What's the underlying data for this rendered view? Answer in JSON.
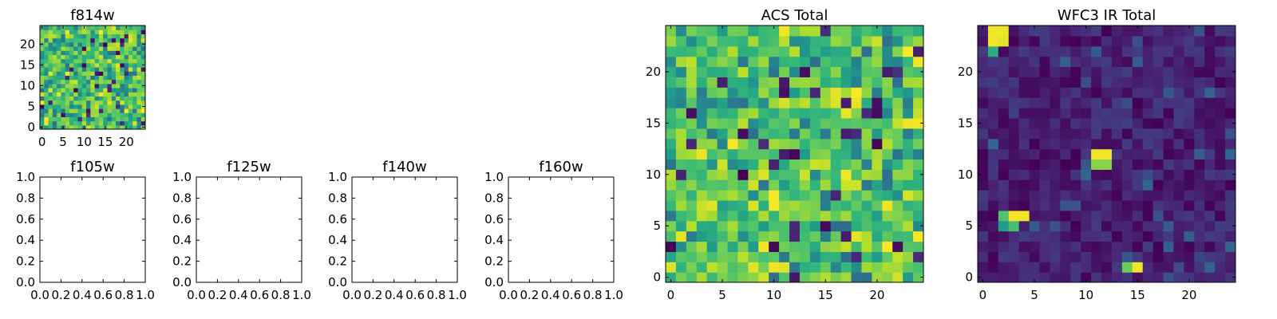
{
  "chart_data": [
    {
      "type": "heatmap",
      "title": "f814w",
      "grid_size": 25,
      "xlim": [
        -0.5,
        24.5
      ],
      "ylim": [
        -0.5,
        24.5
      ],
      "xticks": [
        "0",
        "5",
        "10",
        "15",
        "20"
      ],
      "yticks": [
        "0",
        "5",
        "10",
        "15",
        "20"
      ],
      "colormap": "viridis",
      "seed": 814,
      "pattern": "noise"
    },
    {
      "type": "empty",
      "title": "f105w",
      "xlim": [
        0,
        1
      ],
      "ylim": [
        0,
        1
      ],
      "xticks": [
        "0.0",
        "0.2",
        "0.4",
        "0.6",
        "0.8",
        "1.0"
      ],
      "yticks": [
        "0.0",
        "0.2",
        "0.4",
        "0.6",
        "0.8",
        "1.0"
      ]
    },
    {
      "type": "empty",
      "title": "f125w",
      "xlim": [
        0,
        1
      ],
      "ylim": [
        0,
        1
      ],
      "xticks": [
        "0.0",
        "0.2",
        "0.4",
        "0.6",
        "0.8",
        "1.0"
      ],
      "yticks": [
        "0.0",
        "0.2",
        "0.4",
        "0.6",
        "0.8",
        "1.0"
      ]
    },
    {
      "type": "empty",
      "title": "f140w",
      "xlim": [
        0,
        1
      ],
      "ylim": [
        0,
        1
      ],
      "xticks": [
        "0.0",
        "0.2",
        "0.4",
        "0.6",
        "0.8",
        "1.0"
      ],
      "yticks": [
        "0.0",
        "0.2",
        "0.4",
        "0.6",
        "0.8",
        "1.0"
      ]
    },
    {
      "type": "empty",
      "title": "f160w",
      "xlim": [
        0,
        1
      ],
      "ylim": [
        0,
        1
      ],
      "xticks": [
        "0.0",
        "0.2",
        "0.4",
        "0.6",
        "0.8",
        "1.0"
      ],
      "yticks": [
        "0.0",
        "0.2",
        "0.4",
        "0.6",
        "0.8",
        "1.0"
      ]
    },
    {
      "type": "heatmap",
      "title": "ACS Total",
      "grid_size": 25,
      "xlim": [
        -0.5,
        24.5
      ],
      "ylim": [
        -0.5,
        24.5
      ],
      "xticks": [
        "0",
        "5",
        "10",
        "15",
        "20"
      ],
      "yticks": [
        "0",
        "5",
        "10",
        "15",
        "20"
      ],
      "colormap": "viridis",
      "seed": 4242,
      "pattern": "noise"
    },
    {
      "type": "heatmap",
      "title": "WFC3 IR Total",
      "grid_size": 25,
      "xlim": [
        -0.5,
        24.5
      ],
      "ylim": [
        -0.5,
        24.5
      ],
      "xticks": [
        "0",
        "5",
        "10",
        "15",
        "20"
      ],
      "yticks": [
        "0",
        "5",
        "10",
        "15",
        "20"
      ],
      "colormap": "viridis",
      "seed": 3160,
      "pattern": "sparse",
      "hot_pixels": [
        {
          "x": 1,
          "y": 24,
          "v": 0.98
        },
        {
          "x": 2,
          "y": 24,
          "v": 0.98
        },
        {
          "x": 1,
          "y": 23,
          "v": 0.98
        },
        {
          "x": 2,
          "y": 23,
          "v": 0.96
        },
        {
          "x": 1,
          "y": 22,
          "v": 0.62
        },
        {
          "x": 11,
          "y": 12,
          "v": 0.98
        },
        {
          "x": 12,
          "y": 12,
          "v": 0.98
        },
        {
          "x": 11,
          "y": 11,
          "v": 0.82
        },
        {
          "x": 12,
          "y": 11,
          "v": 0.82
        },
        {
          "x": 2,
          "y": 6,
          "v": 0.72
        },
        {
          "x": 3,
          "y": 6,
          "v": 0.98
        },
        {
          "x": 4,
          "y": 6,
          "v": 0.98
        },
        {
          "x": 2,
          "y": 5,
          "v": 0.55
        },
        {
          "x": 3,
          "y": 5,
          "v": 0.7
        },
        {
          "x": 14,
          "y": 1,
          "v": 0.78
        },
        {
          "x": 15,
          "y": 1,
          "v": 0.98
        }
      ]
    }
  ]
}
